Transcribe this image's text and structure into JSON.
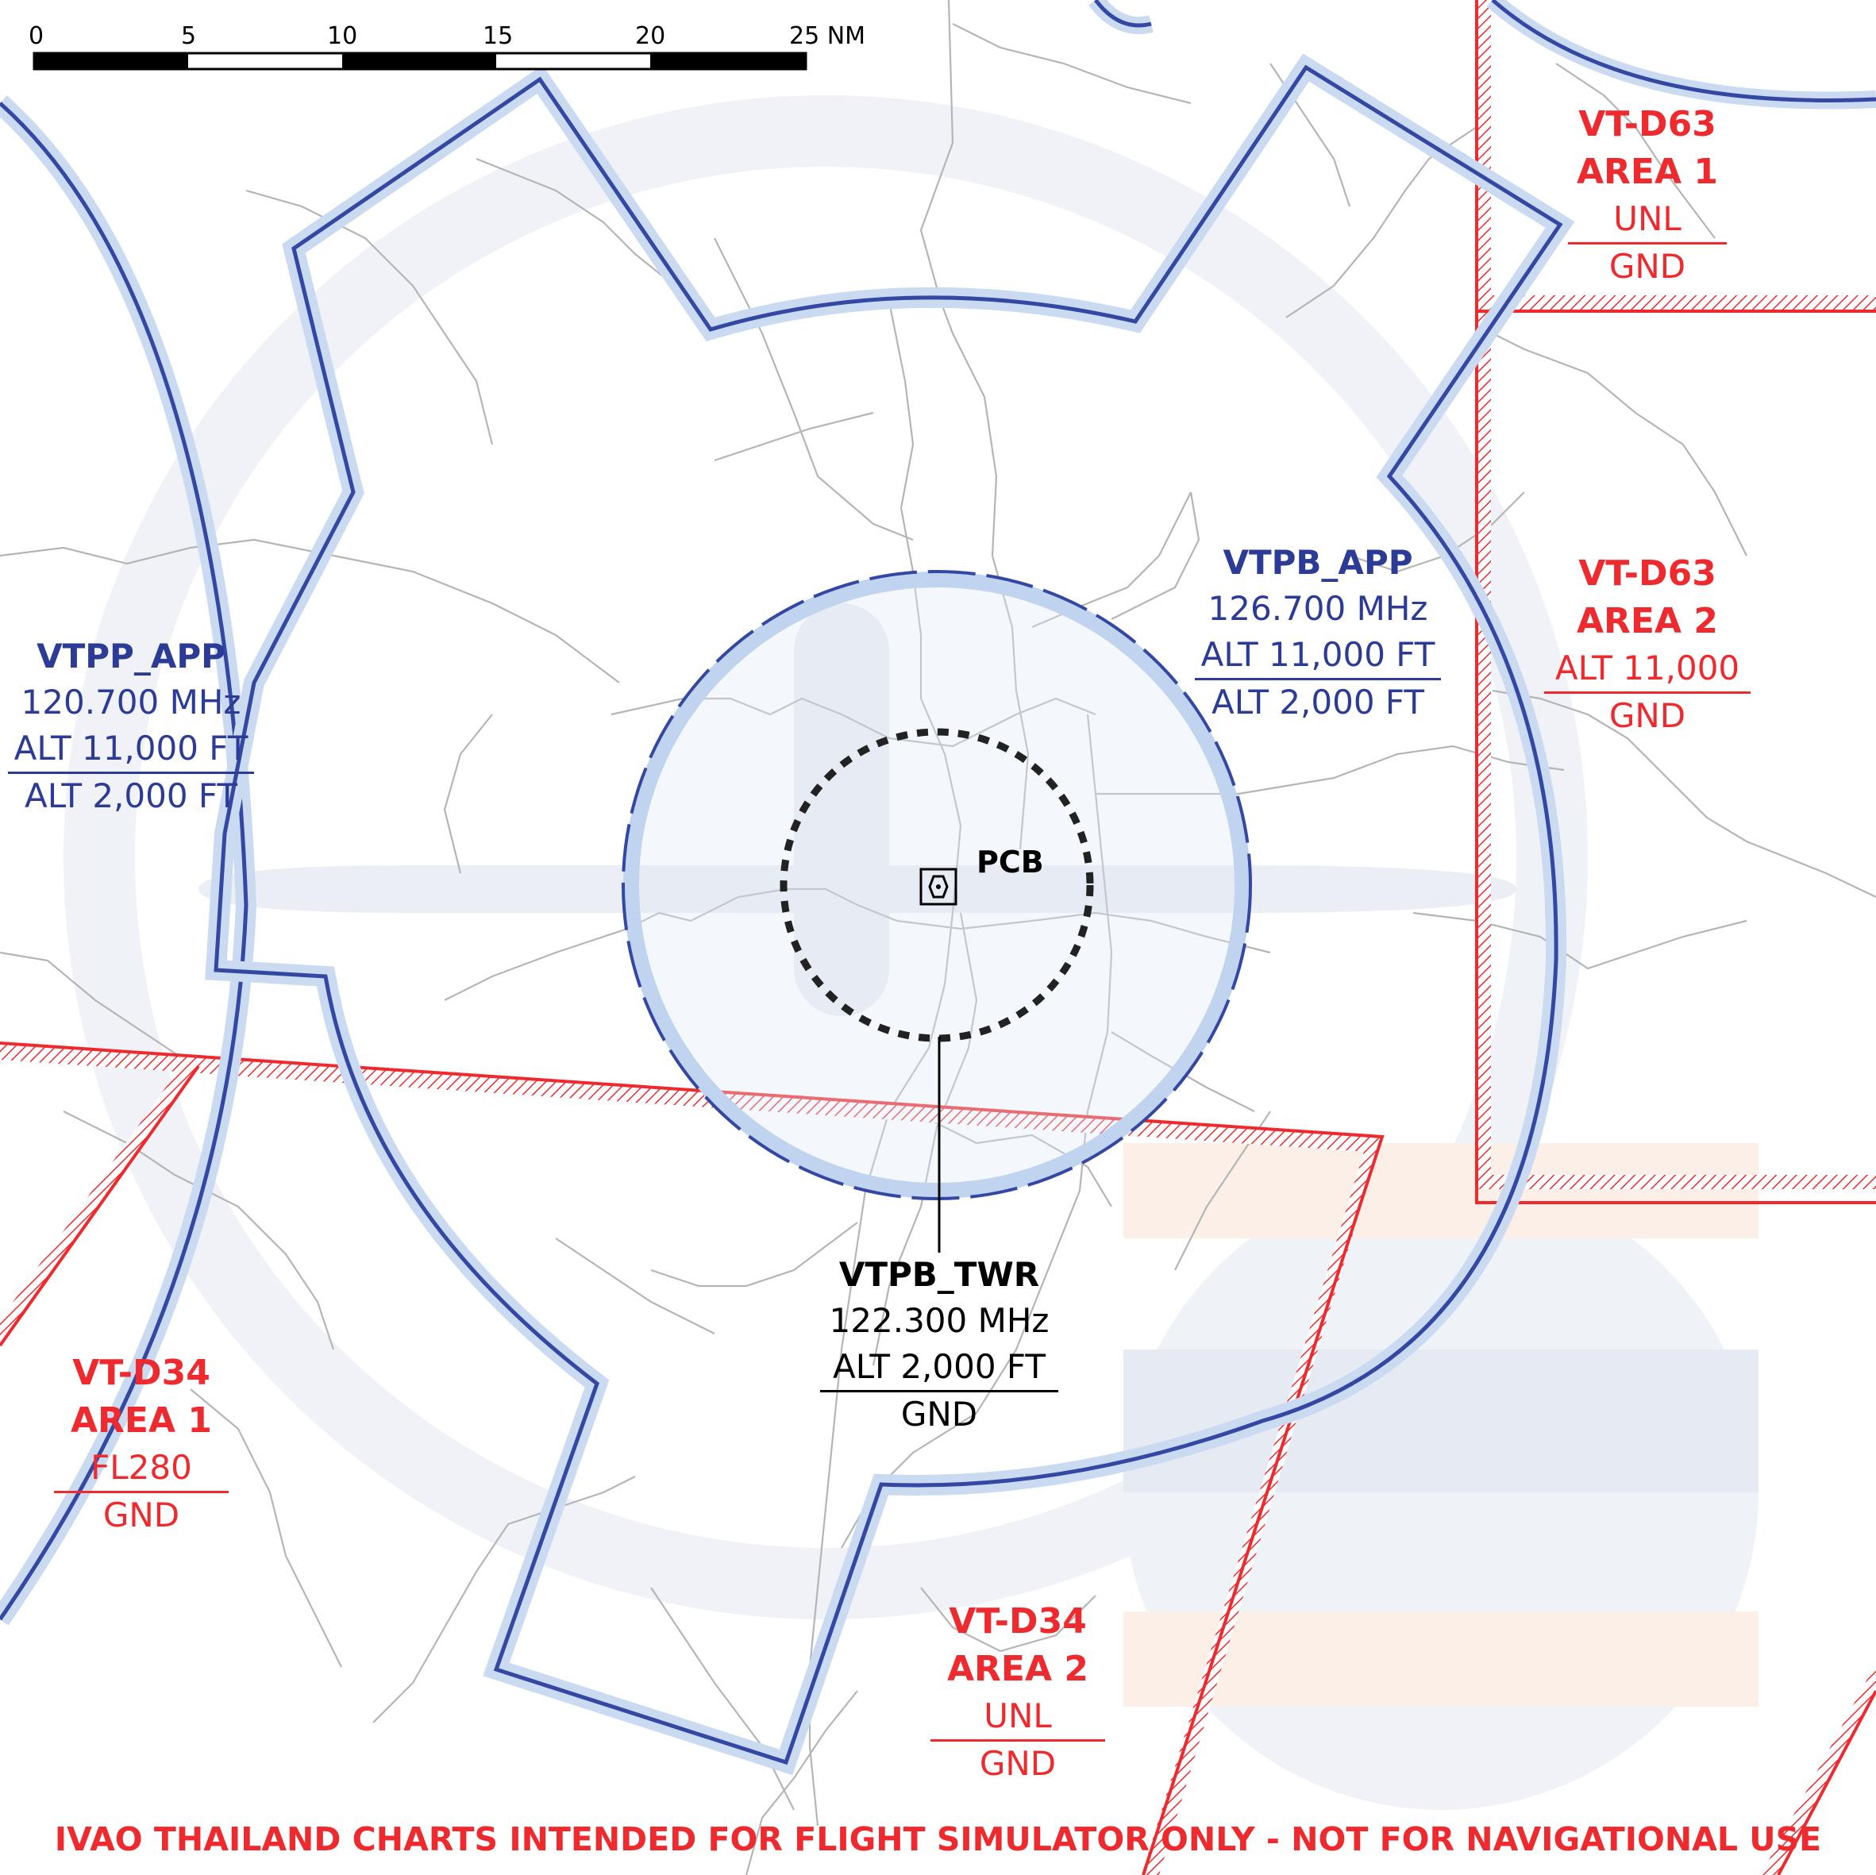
{
  "scale_bar": {
    "ticks": [
      "0",
      "5",
      "10",
      "15",
      "20",
      "25 NM"
    ]
  },
  "navaid": {
    "ident": "PCB",
    "icon": "vor-dme-icon"
  },
  "airspaces": {
    "vtpp_app": {
      "name": "VTPP_APP",
      "freq": "120.700 MHz",
      "upper": "ALT 11,000 FT",
      "lower": "ALT 2,000 FT"
    },
    "vtpb_app": {
      "name": "VTPB_APP",
      "freq": "126.700 MHz",
      "upper": "ALT 11,000 FT",
      "lower": "ALT 2,000 FT"
    },
    "vtpb_twr": {
      "name": "VTPB_TWR",
      "freq": "122.300 MHz",
      "upper": "ALT 2,000 FT",
      "lower": "GND"
    },
    "d63_area1": {
      "name": "VT-D63",
      "area": "AREA 1",
      "upper": "UNL",
      "lower": "GND"
    },
    "d63_area2": {
      "name": "VT-D63",
      "area": "AREA 2",
      "upper": "ALT 11,000",
      "lower": "GND"
    },
    "d34_area1": {
      "name": "VT-D34",
      "area": "AREA 1",
      "upper": "FL280",
      "lower": "GND"
    },
    "d34_area2": {
      "name": "VT-D34",
      "area": "AREA 2",
      "upper": "UNL",
      "lower": "GND"
    }
  },
  "disclaimer": "IVAO THAILAND CHARTS INTENDED FOR FLIGHT SIMULATOR ONLY - NOT FOR NAVIGATIONAL USE",
  "colors": {
    "app_boundary": "#3347a3",
    "app_halo": "#c9daf1",
    "danger_area": "#ee2a2f",
    "tower": "#000000",
    "roads": "#b5b5b5",
    "watermark": "#e6ebf4"
  }
}
